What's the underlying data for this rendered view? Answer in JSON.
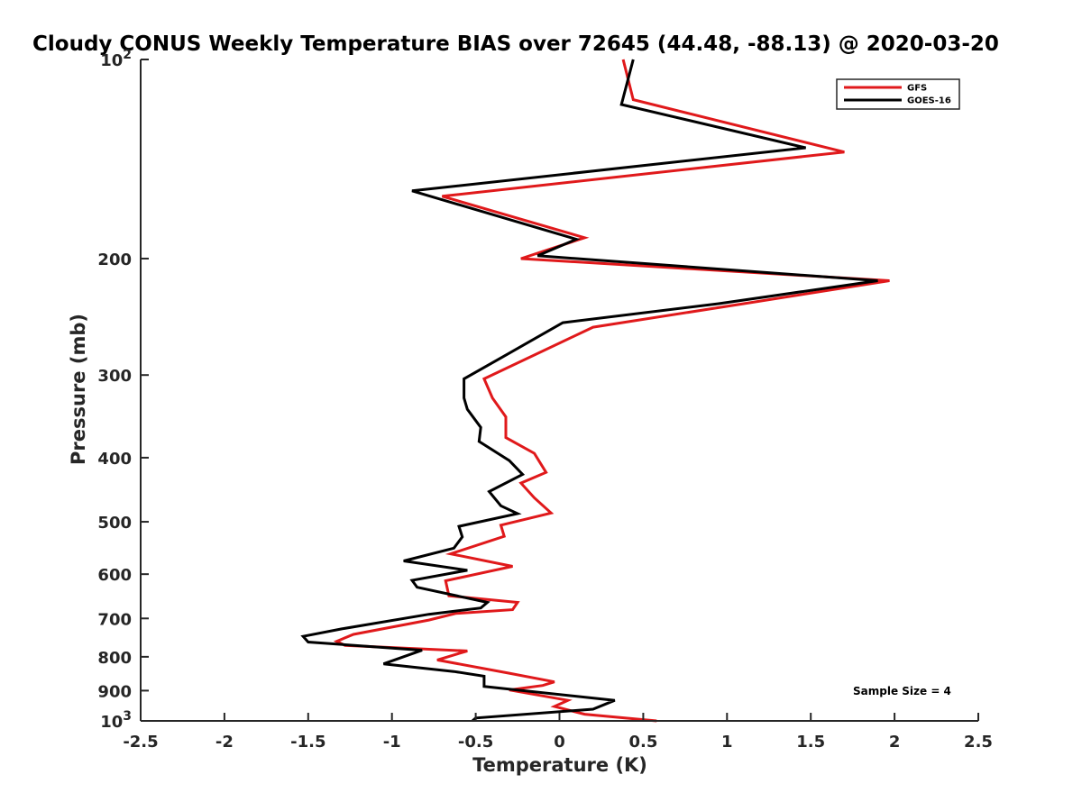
{
  "chart_data": {
    "type": "line",
    "title": "Cloudy CONUS Weekly Temperature BIAS over 72645 (44.48, -88.13) @ 2020-03-20",
    "xlabel": "Temperature (K)",
    "ylabel": "Pressure (mb)",
    "xlim": [
      -2.5,
      2.5
    ],
    "ylim": [
      100,
      1000
    ],
    "y_scale": "log",
    "y_reversed": true,
    "grid": false,
    "legend_position": "top-right",
    "x_ticks": [
      "-2.5",
      "-2",
      "-1.5",
      "-1",
      "-0.5",
      "0",
      "0.5",
      "1",
      "1.5",
      "2",
      "2.5"
    ],
    "y_ticks": [
      {
        "value": 100,
        "base": "10",
        "exp": "2"
      },
      {
        "value": 200,
        "base": "200",
        "exp": ""
      },
      {
        "value": 300,
        "base": "300",
        "exp": ""
      },
      {
        "value": 400,
        "base": "400",
        "exp": ""
      },
      {
        "value": 500,
        "base": "500",
        "exp": ""
      },
      {
        "value": 600,
        "base": "600",
        "exp": ""
      },
      {
        "value": 700,
        "base": "700",
        "exp": ""
      },
      {
        "value": 800,
        "base": "800",
        "exp": ""
      },
      {
        "value": 900,
        "base": "900",
        "exp": ""
      },
      {
        "value": 1000,
        "base": "10",
        "exp": "3"
      }
    ],
    "series": [
      {
        "name": "GFS",
        "color": "#e0191b",
        "points": [
          [
            0.38,
            100
          ],
          [
            0.44,
            115
          ],
          [
            1.7,
            138
          ],
          [
            -0.7,
            161
          ],
          [
            0.15,
            186
          ],
          [
            -0.23,
            200
          ],
          [
            1.97,
            216
          ],
          [
            1.1,
            234
          ],
          [
            0.2,
            254
          ],
          [
            -0.45,
            304
          ],
          [
            -0.4,
            325
          ],
          [
            -0.32,
            347
          ],
          [
            -0.32,
            373
          ],
          [
            -0.15,
            394
          ],
          [
            -0.08,
            421
          ],
          [
            -0.23,
            437
          ],
          [
            -0.15,
            460
          ],
          [
            -0.05,
            485
          ],
          [
            -0.35,
            506
          ],
          [
            -0.33,
            526
          ],
          [
            -0.65,
            559
          ],
          [
            -0.28,
            584
          ],
          [
            -0.68,
            614
          ],
          [
            -0.66,
            647
          ],
          [
            -0.25,
            662
          ],
          [
            -0.28,
            679
          ],
          [
            -0.62,
            688
          ],
          [
            -0.78,
            704
          ],
          [
            -1.23,
            740
          ],
          [
            -1.33,
            758
          ],
          [
            -1.28,
            769
          ],
          [
            -0.55,
            784
          ],
          [
            -0.73,
            809
          ],
          [
            -0.3,
            847
          ],
          [
            -0.03,
            873
          ],
          [
            -0.1,
            884
          ],
          [
            -0.3,
            898
          ],
          [
            0.05,
            931
          ],
          [
            -0.03,
            951
          ],
          [
            0.15,
            977
          ],
          [
            0.58,
            1000
          ]
        ]
      },
      {
        "name": "GOES-16",
        "color": "#000000",
        "points": [
          [
            0.44,
            100
          ],
          [
            0.37,
            117
          ],
          [
            1.47,
            136
          ],
          [
            -0.88,
            158
          ],
          [
            0.1,
            187
          ],
          [
            -0.13,
            198
          ],
          [
            1.9,
            216
          ],
          [
            0.95,
            234
          ],
          [
            0.02,
            250
          ],
          [
            -0.3,
            278
          ],
          [
            -0.57,
            304
          ],
          [
            -0.57,
            325
          ],
          [
            -0.55,
            338
          ],
          [
            -0.47,
            360
          ],
          [
            -0.48,
            378
          ],
          [
            -0.3,
            404
          ],
          [
            -0.22,
            424
          ],
          [
            -0.42,
            450
          ],
          [
            -0.35,
            473
          ],
          [
            -0.25,
            486
          ],
          [
            -0.6,
            508
          ],
          [
            -0.58,
            527
          ],
          [
            -0.63,
            548
          ],
          [
            -0.93,
            573
          ],
          [
            -0.55,
            592
          ],
          [
            -0.88,
            613
          ],
          [
            -0.85,
            628
          ],
          [
            -0.43,
            662
          ],
          [
            -0.47,
            675
          ],
          [
            -0.78,
            690
          ],
          [
            -1.3,
            726
          ],
          [
            -1.53,
            745
          ],
          [
            -1.5,
            760
          ],
          [
            -0.82,
            782
          ],
          [
            -1.05,
            820
          ],
          [
            -0.63,
            842
          ],
          [
            -0.45,
            856
          ],
          [
            -0.45,
            887
          ],
          [
            0.33,
            931
          ],
          [
            0.2,
            960
          ],
          [
            -0.5,
            990
          ],
          [
            -0.52,
            1000
          ]
        ]
      }
    ],
    "annotations": [
      {
        "text": "Sample Size = 4"
      }
    ]
  }
}
